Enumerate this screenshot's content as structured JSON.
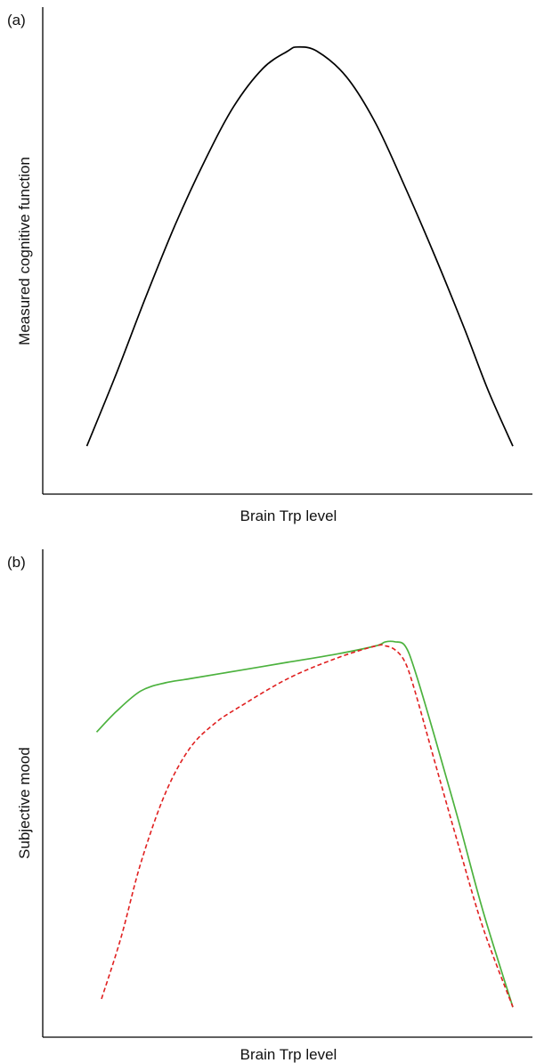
{
  "chart_data": [
    {
      "type": "line",
      "panel_label": "(a)",
      "title": "",
      "xlabel": "Brain Trp level",
      "ylabel": "Measured cognitive function",
      "xlim": [
        0,
        100
      ],
      "ylim": [
        0,
        100
      ],
      "x_ticks": false,
      "y_ticks": false,
      "grid": false,
      "series": [
        {
          "color": "#000000",
          "dash": "solid",
          "x": [
            9,
            15,
            21,
            27,
            33,
            39,
            45,
            50,
            52,
            56,
            62,
            68,
            74,
            80,
            86,
            91,
            96
          ],
          "y": [
            5,
            22,
            40,
            57,
            72,
            85,
            94,
            98,
            99,
            98,
            92,
            81,
            66,
            50,
            33,
            18,
            5
          ]
        }
      ]
    },
    {
      "type": "line",
      "panel_label": "(b)",
      "title": "",
      "xlabel": "Brain Trp level",
      "ylabel": "Subjective mood",
      "xlim": [
        0,
        100
      ],
      "ylim": [
        0,
        100
      ],
      "x_ticks": false,
      "y_ticks": false,
      "grid": false,
      "series": [
        {
          "color": "#4cb23e",
          "dash": "solid",
          "x": [
            11,
            15,
            20,
            25,
            30,
            40,
            50,
            60,
            68,
            70,
            72,
            74,
            76,
            80,
            85,
            90,
            96
          ],
          "y": [
            70,
            75,
            80,
            82,
            83,
            85,
            87,
            89,
            91,
            92,
            92,
            91,
            85,
            69,
            48,
            26,
            3
          ]
        },
        {
          "color": "#e02020",
          "dash": "dashed",
          "x": [
            12,
            16,
            20,
            25,
            30,
            35,
            40,
            50,
            60,
            68,
            70,
            72,
            74,
            76,
            80,
            85,
            90,
            96
          ],
          "y": [
            5,
            20,
            38,
            55,
            66,
            72,
            76,
            83,
            88,
            91,
            91,
            90,
            87,
            80,
            63,
            42,
            22,
            3
          ]
        }
      ]
    }
  ]
}
